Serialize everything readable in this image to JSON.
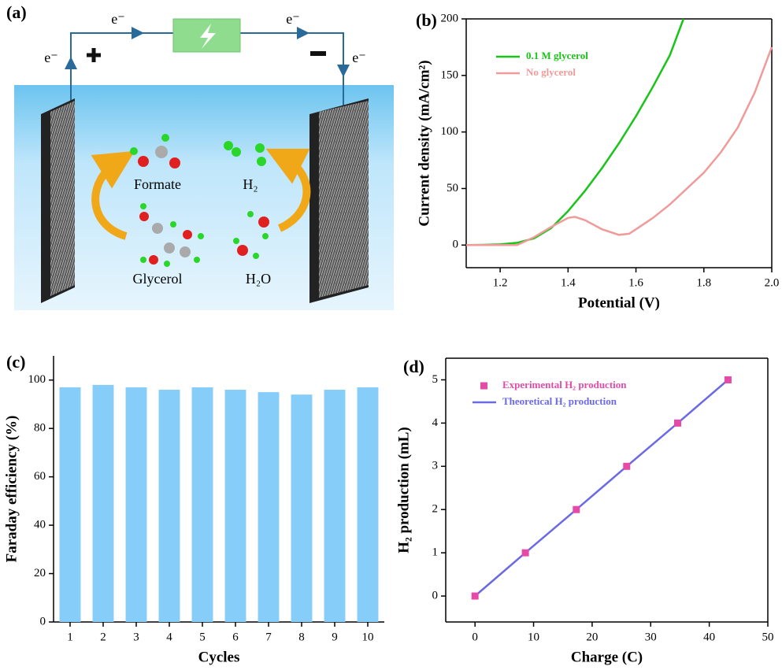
{
  "diagram": {
    "panel_label": "(a)",
    "electron_labels": [
      "e⁻",
      "e⁻",
      "e⁻",
      "e⁻"
    ],
    "molecules": [
      "Formate",
      "H₂",
      "Glycerol",
      "H₂O"
    ]
  },
  "chart_data": [
    {
      "type": "line",
      "panel_label": "(b)",
      "xlabel": "Potential (V)",
      "ylabel": "Current density (mA/cm²)",
      "xlim": [
        1.1,
        2.0
      ],
      "xticks": [
        1.2,
        1.4,
        1.6,
        1.8,
        {
          "value": 2.0,
          "label": "2.0"
        }
      ],
      "ylim": [
        -20,
        200
      ],
      "yticks": [
        0,
        50,
        100,
        150,
        200
      ],
      "legend": "upper left",
      "series": [
        {
          "name": "0.1 M glycerol",
          "color": "#18c418",
          "x": [
            1.1,
            1.15,
            1.2,
            1.25,
            1.3,
            1.35,
            1.4,
            1.45,
            1.5,
            1.55,
            1.6,
            1.65,
            1.7,
            1.74
          ],
          "values": [
            0,
            0.2,
            0.6,
            2,
            6,
            15,
            30,
            48,
            68,
            90,
            114,
            140,
            168,
            200
          ]
        },
        {
          "name": "No glycerol",
          "color": "#f09a9a",
          "x": [
            1.1,
            1.15,
            1.2,
            1.25,
            1.3,
            1.35,
            1.4,
            1.42,
            1.45,
            1.5,
            1.55,
            1.58,
            1.6,
            1.65,
            1.7,
            1.75,
            1.8,
            1.85,
            1.9,
            1.95,
            2.0
          ],
          "values": [
            0,
            0,
            0,
            0,
            7,
            16,
            24,
            25,
            22,
            14,
            9,
            10,
            14,
            24,
            36,
            50,
            64,
            82,
            104,
            135,
            175
          ]
        }
      ]
    },
    {
      "type": "bar",
      "panel_label": "(c)",
      "xlabel": "Cycles",
      "ylabel": "Faraday efficiency (%)",
      "categories": [
        "1",
        "2",
        "3",
        "4",
        "5",
        "6",
        "7",
        "8",
        "9",
        "10"
      ],
      "values": [
        97,
        98,
        97,
        96,
        97,
        96,
        95,
        94,
        96,
        97
      ],
      "color": "#86cdf9",
      "ylim": [
        0,
        110
      ],
      "yticks": [
        0,
        20,
        40,
        60,
        80,
        100
      ]
    },
    {
      "type": "scatter",
      "panel_label": "(d)",
      "xlabel": "Charge (C)",
      "ylabel": "H₂ production (mL)",
      "xlim": [
        -5,
        50
      ],
      "xticks": [
        0,
        10,
        20,
        30,
        40,
        50
      ],
      "ylim": [
        -0.6,
        5.5
      ],
      "yticks": [
        0,
        1,
        2,
        3,
        4,
        5
      ],
      "legend": "upper left",
      "series": [
        {
          "name": "Experimental H₂ production",
          "color": "#e64aa8",
          "mode": "markers",
          "x": [
            0,
            8.6,
            17.3,
            25.9,
            34.6,
            43.2
          ],
          "values": [
            0,
            1,
            2,
            3,
            4,
            5
          ]
        },
        {
          "name": "Theoretical H₂ production",
          "color": "#6a6ae6",
          "mode": "line",
          "x": [
            0,
            8.6,
            17.3,
            25.9,
            34.6,
            43.2
          ],
          "values": [
            0,
            1,
            2,
            3,
            4,
            5
          ]
        }
      ]
    }
  ]
}
